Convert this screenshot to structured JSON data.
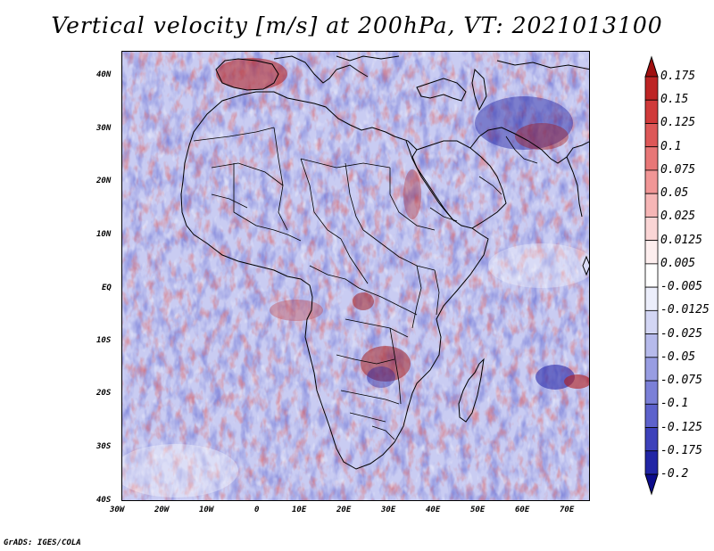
{
  "title": "Vertical velocity [m/s] at 200hPa, VT: 2021013100",
  "footer": "GrADS: IGES/COLA",
  "map": {
    "region": "Africa",
    "lon_range": [
      -30,
      75
    ],
    "lat_range": [
      -40,
      44
    ],
    "lon_ticks": [
      "30W",
      "20W",
      "10W",
      "0",
      "10E",
      "20E",
      "30E",
      "40E",
      "50E",
      "60E",
      "70E"
    ],
    "lat_ticks": [
      "40N",
      "30N",
      "20N",
      "10N",
      "EQ",
      "10S",
      "20S",
      "30S",
      "40S"
    ]
  },
  "colorbar": {
    "labels": [
      "0.175",
      "0.15",
      "0.125",
      "0.1",
      "0.075",
      "0.05",
      "0.025",
      "0.0125",
      "0.005",
      "-0.005",
      "-0.0125",
      "-0.025",
      "-0.05",
      "-0.075",
      "-0.1",
      "-0.125",
      "-0.175",
      "-0.2"
    ],
    "colors": [
      "#a01010",
      "#bd2424",
      "#d03a3a",
      "#dd5858",
      "#e87777",
      "#f19696",
      "#f6b6b6",
      "#fad5d5",
      "#fdeeee",
      "#ffffff",
      "#eceefb",
      "#d3d6f4",
      "#b6baeb",
      "#989de2",
      "#7b80d8",
      "#5d62cc",
      "#3d41bb",
      "#2125a5",
      "#0c0c8c"
    ]
  }
}
